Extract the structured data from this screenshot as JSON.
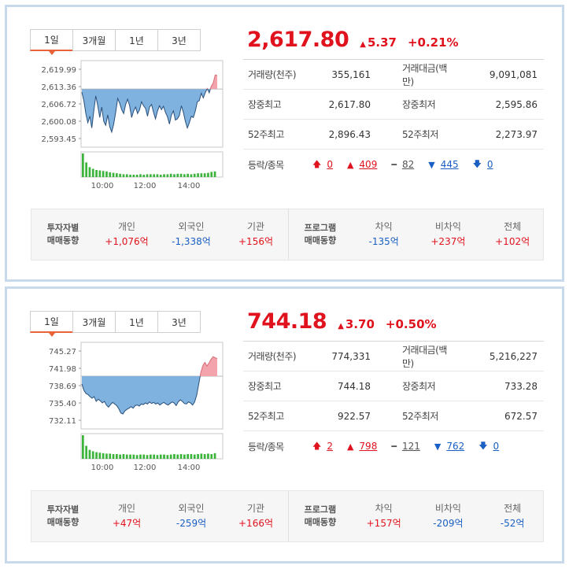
{
  "panels": [
    {
      "tabs": [
        "1일",
        "3개월",
        "1년",
        "3년"
      ],
      "price": "2,617.80",
      "change": "5.37",
      "change_pct": "+0.21%",
      "stats": [
        {
          "l1": "거래량(천주)",
          "v1": "355,161",
          "l2": "거래대금(백만)",
          "v2": "9,091,081"
        },
        {
          "l1": "장중최고",
          "v1": "2,617.80",
          "l2": "장중최저",
          "v2": "2,595.86"
        },
        {
          "l1": "52주최고",
          "v1": "2,896.43",
          "l2": "52주최저",
          "v2": "2,273.97"
        }
      ],
      "breadth_label": "등락/종목",
      "breadth": [
        "0",
        "409",
        "82",
        "445",
        "0"
      ],
      "investors_label": [
        "투자자별",
        "매매동향"
      ],
      "investors": [
        {
          "h": "개인",
          "v": "+1,076억"
        },
        {
          "h": "외국인",
          "v": "-1,338억"
        },
        {
          "h": "기관",
          "v": "+156억"
        }
      ],
      "program_label": [
        "프로그램",
        "매매동향"
      ],
      "program": [
        {
          "h": "차익",
          "v": "-135억"
        },
        {
          "h": "비차익",
          "v": "+237억"
        },
        {
          "h": "전체",
          "v": "+102억"
        }
      ],
      "chart": {
        "y_ticks": [
          "2,619.99",
          "2,613.36",
          "2,606.72",
          "2,600.08",
          "2,593.45"
        ],
        "x_ticks": [
          "10:00",
          "12:00",
          "14:00"
        ],
        "ymin": 2590.13,
        "ymax": 2623.31,
        "baseline": 2612.43,
        "close_line": [
          2611.2,
          2608.0,
          2603.0,
          2599.5,
          2602.0,
          2597.5,
          2604.0,
          2609.8,
          2606.0,
          2601.5,
          2605.5,
          2600.0,
          2598.5,
          2602.5,
          2598.0,
          2595.9,
          2599.0,
          2603.5,
          2608.8,
          2607.0,
          2604.5,
          2603.0,
          2606.5,
          2608.5,
          2606.0,
          2601.5,
          2604.0,
          2605.5,
          2603.0,
          2604.5,
          2607.5,
          2606.0,
          2605.0,
          2602.0,
          2605.5,
          2606.5,
          2603.5,
          2601.0,
          2604.0,
          2606.0,
          2604.5,
          2605.8,
          2603.5,
          2601.8,
          2599.0,
          2602.5,
          2604.0,
          2600.5,
          2601.0,
          2602.3,
          2606.0,
          2603.5,
          2600.0,
          2597.5,
          2599.5,
          2602.0,
          2601.5,
          2604.0,
          2607.5,
          2608.0,
          2610.8,
          2609.0,
          2611.0,
          2612.6,
          2611.0,
          2613.5,
          2614.8,
          2617.8,
          2617.6
        ],
        "volume": [
          1.0,
          0.62,
          0.42,
          0.35,
          0.3,
          0.28,
          0.26,
          0.24,
          0.2,
          0.18,
          0.16,
          0.14,
          0.12,
          0.12,
          0.1,
          0.1,
          0.1,
          0.12,
          0.1,
          0.12,
          0.12,
          0.12,
          0.12,
          0.1,
          0.12,
          0.12,
          0.14,
          0.12,
          0.14,
          0.14,
          0.12,
          0.14,
          0.12,
          0.14,
          0.16,
          0.16,
          0.16,
          0.18,
          0.22,
          0.24
        ]
      }
    },
    {
      "tabs": [
        "1일",
        "3개월",
        "1년",
        "3년"
      ],
      "price": "744.18",
      "change": "3.70",
      "change_pct": "+0.50%",
      "stats": [
        {
          "l1": "거래량(천주)",
          "v1": "774,331",
          "l2": "거래대금(백만)",
          "v2": "5,216,227"
        },
        {
          "l1": "장중최고",
          "v1": "744.18",
          "l2": "장중최저",
          "v2": "733.28"
        },
        {
          "l1": "52주최고",
          "v1": "922.57",
          "l2": "52주최저",
          "v2": "672.57"
        }
      ],
      "breadth_label": "등락/종목",
      "breadth": [
        "2",
        "798",
        "121",
        "762",
        "0"
      ],
      "investors_label": [
        "투자자별",
        "매매동향"
      ],
      "investors": [
        {
          "h": "개인",
          "v": "+47억"
        },
        {
          "h": "외국인",
          "v": "-259억"
        },
        {
          "h": "기관",
          "v": "+166억"
        }
      ],
      "program_label": [
        "프로그램",
        "매매동향"
      ],
      "program": [
        {
          "h": "차익",
          "v": "+157억"
        },
        {
          "h": "비차익",
          "v": "-209억"
        },
        {
          "h": "전체",
          "v": "-52억"
        }
      ],
      "chart": {
        "y_ticks": [
          "745.27",
          "741.98",
          "738.69",
          "735.40",
          "732.11"
        ],
        "x_ticks": [
          "10:00",
          "12:00",
          "14:00"
        ],
        "ymin": 730.47,
        "ymax": 746.91,
        "baseline": 740.48,
        "close_line": [
          739.0,
          737.8,
          737.2,
          737.0,
          736.6,
          736.3,
          736.6,
          735.7,
          736.1,
          735.8,
          735.4,
          735.7,
          735.0,
          734.6,
          735.1,
          735.5,
          735.2,
          734.9,
          734.3,
          733.5,
          733.3,
          733.9,
          734.2,
          734.4,
          734.7,
          734.4,
          734.9,
          735.0,
          734.8,
          735.2,
          735.1,
          735.4,
          735.2,
          735.6,
          735.3,
          735.5,
          735.2,
          735.4,
          735.0,
          735.3,
          735.5,
          735.2,
          735.0,
          735.3,
          735.6,
          735.4,
          734.9,
          735.6,
          736.0,
          735.7,
          735.3,
          735.2,
          735.6,
          735.4,
          735.0,
          735.6,
          736.9,
          739.0,
          741.2,
          742.5,
          743.1,
          742.4,
          743.0,
          743.7,
          744.18,
          744.0,
          743.8
        ],
        "volume": [
          1.0,
          0.55,
          0.38,
          0.32,
          0.28,
          0.26,
          0.24,
          0.22,
          0.22,
          0.2,
          0.2,
          0.18,
          0.2,
          0.18,
          0.18,
          0.18,
          0.16,
          0.18,
          0.18,
          0.16,
          0.18,
          0.18,
          0.16,
          0.18,
          0.18,
          0.16,
          0.18,
          0.2,
          0.18,
          0.2,
          0.18,
          0.2,
          0.2,
          0.18,
          0.2,
          0.22,
          0.2,
          0.22,
          0.2,
          0.24
        ]
      }
    }
  ],
  "colors": {
    "up": "#e0121d",
    "down": "#1a5fc4",
    "chart_below_fill": "#7fb2de",
    "chart_below_stroke": "#2a4f7a",
    "chart_above_fill": "#f2a3ab",
    "volume_bar": "#3cb43c"
  }
}
